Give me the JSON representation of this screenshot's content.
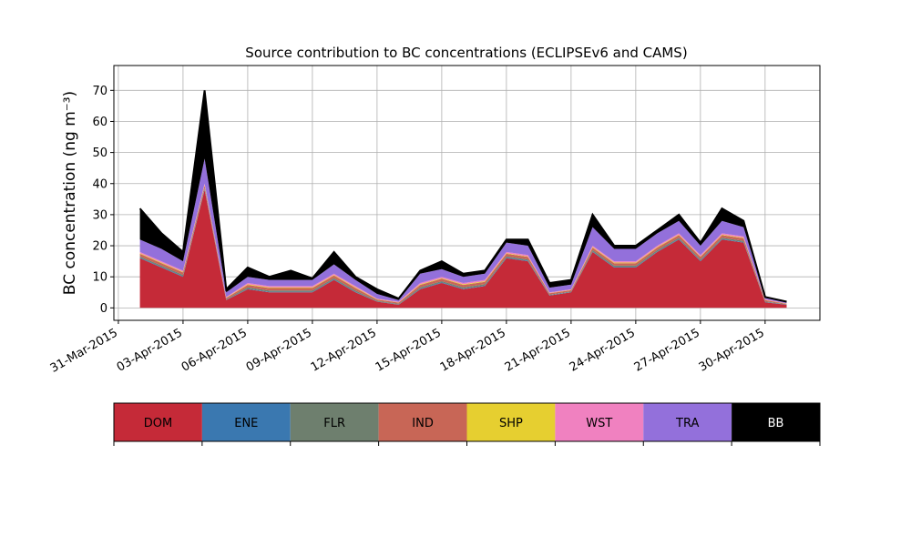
{
  "chart_data": {
    "type": "stacked_area",
    "title": "Source contribution to BC concentrations (ECLIPSEv6 and CAMS)",
    "y_label": "BC concentration (ng m⁻³)",
    "x": [
      "2015-04-01",
      "2015-04-02",
      "2015-04-03",
      "2015-04-04",
      "2015-04-05",
      "2015-04-06",
      "2015-04-07",
      "2015-04-08",
      "2015-04-09",
      "2015-04-10",
      "2015-04-11",
      "2015-04-12",
      "2015-04-13",
      "2015-04-14",
      "2015-04-15",
      "2015-04-16",
      "2015-04-17",
      "2015-04-18",
      "2015-04-19",
      "2015-04-20",
      "2015-04-21",
      "2015-04-22",
      "2015-04-23",
      "2015-04-24",
      "2015-04-25",
      "2015-04-26",
      "2015-04-27",
      "2015-04-28",
      "2015-04-29",
      "2015-04-30",
      "2015-05-01"
    ],
    "series": [
      {
        "name": "DOM",
        "color": "#c52a38",
        "values": [
          16,
          13,
          10,
          38,
          2.5,
          6,
          5,
          5,
          5,
          9,
          5,
          2,
          1,
          6,
          8,
          6,
          7,
          16,
          15,
          4,
          5,
          18,
          13,
          13,
          18,
          22,
          15,
          22,
          21,
          1.8,
          1
        ]
      },
      {
        "name": "ENE",
        "color": "#3a78b0",
        "values": [
          0.2,
          0.2,
          0.2,
          0.2,
          0.1,
          0.2,
          0.2,
          0.2,
          0.2,
          0.2,
          0.2,
          0.1,
          0.1,
          0.2,
          0.2,
          0.2,
          0.2,
          0.2,
          0.2,
          0.1,
          0.1,
          0.2,
          0.2,
          0.2,
          0.2,
          0.2,
          0.2,
          0.2,
          0.2,
          0.1,
          0.1
        ]
      },
      {
        "name": "FLR",
        "color": "#6e7f6e",
        "values": [
          0.4,
          0.4,
          0.4,
          0.4,
          0.2,
          0.4,
          0.4,
          0.4,
          0.4,
          0.4,
          0.4,
          0.2,
          0.2,
          0.4,
          0.4,
          0.4,
          0.4,
          0.4,
          0.4,
          0.2,
          0.2,
          0.4,
          0.4,
          0.4,
          0.4,
          0.4,
          0.4,
          0.4,
          0.4,
          0.2,
          0.1
        ]
      },
      {
        "name": "IND",
        "color": "#c86656",
        "values": [
          0.8,
          0.8,
          0.8,
          0.8,
          0.4,
          0.8,
          0.8,
          0.8,
          0.8,
          0.8,
          0.8,
          0.4,
          0.4,
          0.8,
          0.8,
          0.8,
          0.8,
          0.8,
          0.8,
          0.4,
          0.4,
          0.8,
          0.8,
          0.8,
          0.8,
          0.8,
          0.8,
          0.8,
          0.8,
          0.4,
          0.1
        ]
      },
      {
        "name": "SHP",
        "color": "#e6cf30",
        "values": [
          0.2,
          0.2,
          0.2,
          0.2,
          0.1,
          0.2,
          0.2,
          0.2,
          0.2,
          0.2,
          0.2,
          0.1,
          0.1,
          0.2,
          0.2,
          0.2,
          0.2,
          0.2,
          0.2,
          0.1,
          0.1,
          0.2,
          0.2,
          0.2,
          0.2,
          0.2,
          0.2,
          0.2,
          0.2,
          0.1,
          0.1
        ]
      },
      {
        "name": "WST",
        "color": "#f081c0",
        "values": [
          0.4,
          0.4,
          0.4,
          0.4,
          0.2,
          0.4,
          0.4,
          0.4,
          0.4,
          0.4,
          0.4,
          0.2,
          0.2,
          0.4,
          0.4,
          0.4,
          0.4,
          0.4,
          0.4,
          0.2,
          0.2,
          0.4,
          0.4,
          0.4,
          0.4,
          0.4,
          0.4,
          0.4,
          0.4,
          0.2,
          0.1
        ]
      },
      {
        "name": "TRA",
        "color": "#9370db",
        "values": [
          4,
          4,
          3,
          8,
          1.5,
          2,
          2,
          2,
          2,
          3,
          2,
          1.5,
          0.5,
          3,
          2.5,
          2,
          2,
          3,
          3,
          1.5,
          1.5,
          6,
          4,
          4,
          4,
          4,
          3,
          4,
          3,
          0.5,
          0.3
        ]
      },
      {
        "name": "BB",
        "color": "#000000",
        "values": [
          10,
          5,
          3,
          22,
          1,
          3,
          1,
          3,
          0.5,
          4,
          1,
          1.5,
          0.5,
          1,
          2.5,
          1,
          1,
          1,
          2,
          1.5,
          1.5,
          4,
          1,
          1,
          1,
          2,
          1,
          4,
          2,
          0.2,
          0.2
        ]
      }
    ],
    "xlim": [
      "2015-03-30T19:00",
      "2015-05-02T13:00"
    ],
    "xticks": [
      {
        "value": "2015-03-31",
        "label": "31-Mar-2015"
      },
      {
        "value": "2015-04-03",
        "label": "03-Apr-2015"
      },
      {
        "value": "2015-04-06",
        "label": "06-Apr-2015"
      },
      {
        "value": "2015-04-09",
        "label": "09-Apr-2015"
      },
      {
        "value": "2015-04-12",
        "label": "12-Apr-2015"
      },
      {
        "value": "2015-04-15",
        "label": "15-Apr-2015"
      },
      {
        "value": "2015-04-18",
        "label": "18-Apr-2015"
      },
      {
        "value": "2015-04-21",
        "label": "21-Apr-2015"
      },
      {
        "value": "2015-04-24",
        "label": "24-Apr-2015"
      },
      {
        "value": "2015-04-27",
        "label": "27-Apr-2015"
      },
      {
        "value": "2015-04-30",
        "label": "30-Apr-2015"
      }
    ],
    "ylim": [
      -4,
      78
    ],
    "yticks": [
      0,
      10,
      20,
      30,
      40,
      50,
      60,
      70
    ],
    "grid": true
  }
}
